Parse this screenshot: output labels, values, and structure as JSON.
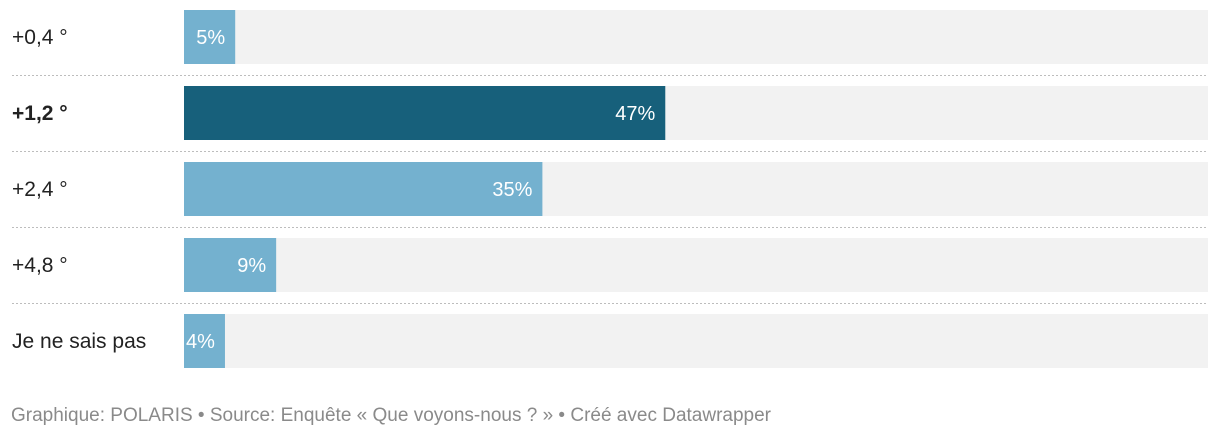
{
  "chart_data": {
    "type": "bar",
    "orientation": "horizontal",
    "categories": [
      "+0,4 °",
      "+1,2 °",
      "+2,4 °",
      "+4,8 °",
      "Je ne sais pas"
    ],
    "values": [
      5,
      47,
      35,
      9,
      4
    ],
    "value_labels": [
      "5%",
      "47%",
      "35%",
      "9%",
      "4%"
    ],
    "highlighted_category": "+1,2 °",
    "xlim": [
      0,
      100
    ],
    "colors": {
      "bar": "#74b1cf",
      "highlight": "#17607b",
      "track": "#f2f2f2",
      "label_inside": "#ffffff",
      "label_outside": "#222222"
    }
  },
  "footer": {
    "text": "Graphique: POLARIS • Source: Enquête « Que voyons-nous ? » • Créé avec Datawrapper"
  }
}
